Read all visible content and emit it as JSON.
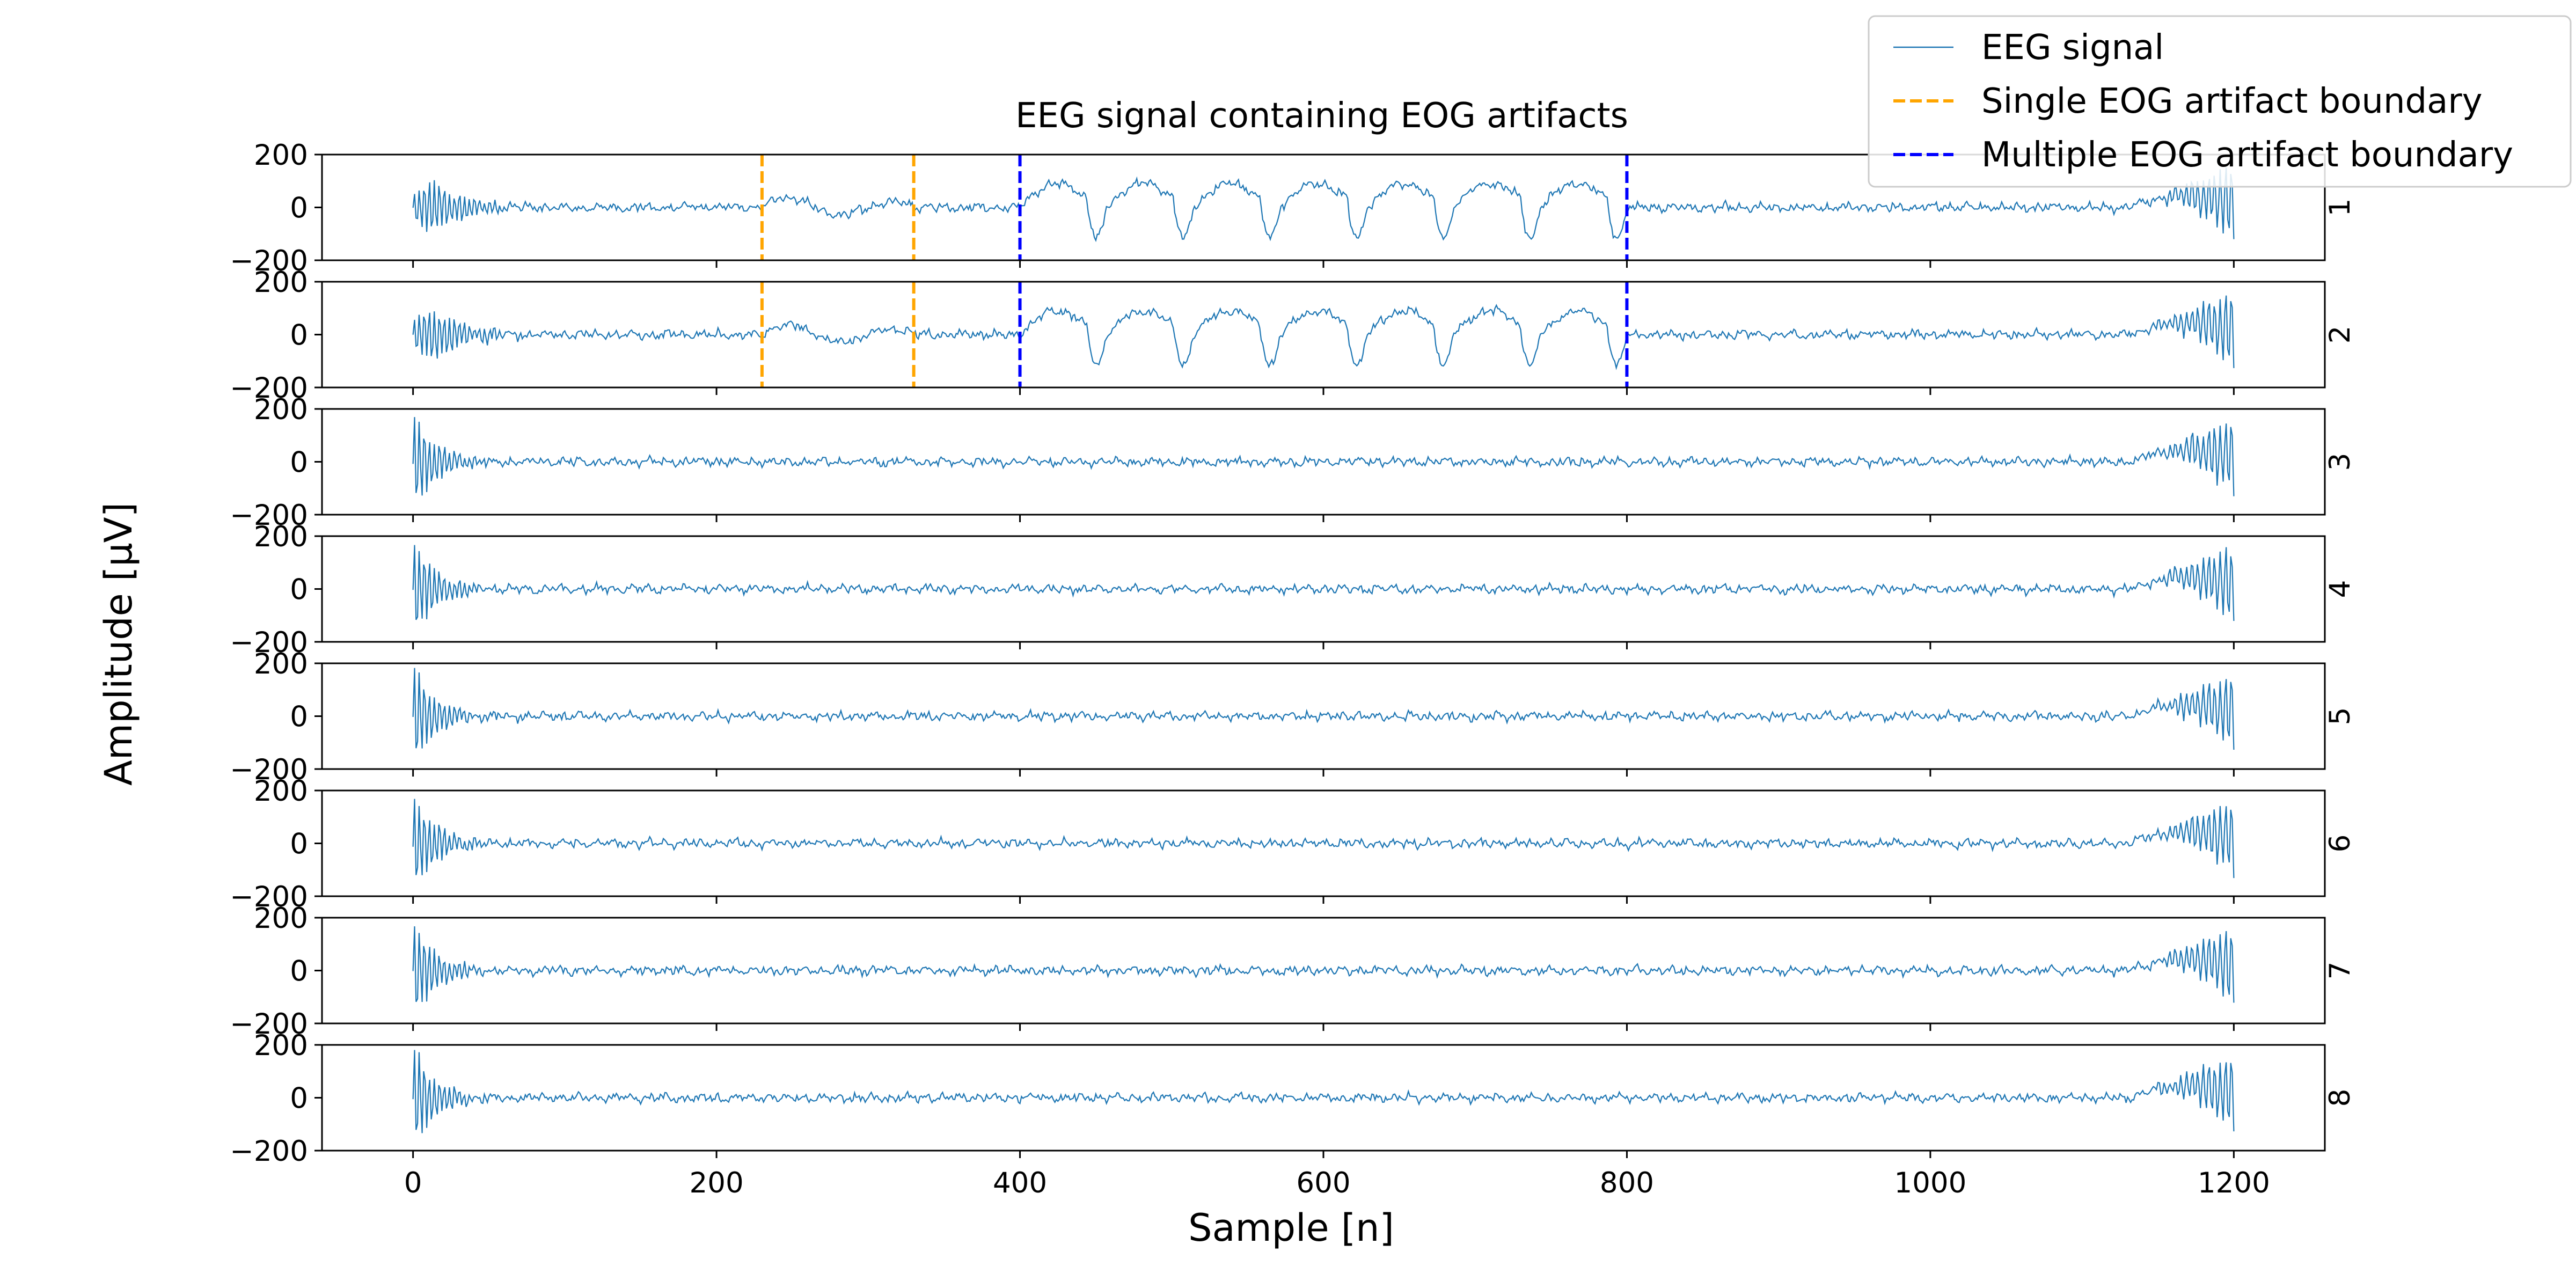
{
  "chart_data": {
    "type": "line",
    "title": "EEG signal containing EOG artifacts",
    "xlabel": "Sample [n]",
    "ylabel": "Amplitude [$\\mu V$]",
    "ylabel_display": "Amplitude [μV]",
    "xlim": [
      -60,
      1260
    ],
    "ylim": [
      -200,
      200
    ],
    "x_ticks": [
      0,
      200,
      400,
      600,
      800,
      1000,
      1200
    ],
    "y_ticks": [
      -200,
      0,
      200
    ],
    "legend": {
      "placement": "top-right",
      "entries": [
        {
          "label": "EEG signal",
          "color": "#1f77b4",
          "style": "solid"
        },
        {
          "label": "Single EOG artifact boundary",
          "color": "#ffa500",
          "style": "dashed"
        },
        {
          "label": "Multiple EOG artifact boundary",
          "color": "#0000ff",
          "style": "dashed"
        }
      ]
    },
    "channels": [
      {
        "name": "1",
        "has_artifacts": true
      },
      {
        "name": "2",
        "has_artifacts": true
      },
      {
        "name": "3",
        "has_artifacts": false
      },
      {
        "name": "4",
        "has_artifacts": false
      },
      {
        "name": "5",
        "has_artifacts": false
      },
      {
        "name": "6",
        "has_artifacts": false
      },
      {
        "name": "7",
        "has_artifacts": false
      },
      {
        "name": "8",
        "has_artifacts": false
      }
    ],
    "signal": {
      "length": 1200,
      "noise_amplitude": 12,
      "start_transient_amplitude": 200,
      "end_transient_amplitude": 150
    },
    "artifacts": {
      "single": {
        "start": 230,
        "end": 330
      },
      "multiple": {
        "start": 400,
        "end": 800,
        "blink_count": 7,
        "blink_amplitude": 90
      }
    },
    "boundaries": [
      {
        "x": 230,
        "kind": "single",
        "channels": [
          "1",
          "2"
        ]
      },
      {
        "x": 330,
        "kind": "single",
        "channels": [
          "1",
          "2"
        ]
      },
      {
        "x": 400,
        "kind": "multiple",
        "channels": [
          "1",
          "2"
        ]
      },
      {
        "x": 800,
        "kind": "multiple",
        "channels": [
          "1",
          "2"
        ]
      }
    ],
    "colors": {
      "signal": "#1f77b4",
      "single_boundary": "#ffa500",
      "multiple_boundary": "#0000ff",
      "axes": "#000000"
    },
    "grid": false
  }
}
